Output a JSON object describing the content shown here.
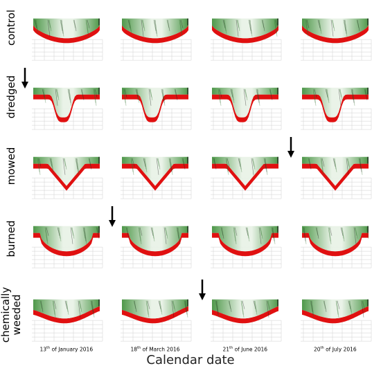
{
  "rows": [
    {
      "label_lines": [
        "control"
      ],
      "arrow_before_col": null
    },
    {
      "label_lines": [
        "dredged"
      ],
      "arrow_before_col": 0
    },
    {
      "label_lines": [
        "mowed"
      ],
      "arrow_before_col": 3
    },
    {
      "label_lines": [
        "burned"
      ],
      "arrow_before_col": 1
    },
    {
      "label_lines": [
        "chemically",
        "weeded"
      ],
      "arrow_before_col": 2
    }
  ],
  "dates": [
    {
      "day": "13",
      "suffix": "th",
      "rest": "of January 2016"
    },
    {
      "day": "18",
      "suffix": "th",
      "rest": "of March 2016"
    },
    {
      "day": "21",
      "suffix": "th",
      "rest": "of June 2016"
    },
    {
      "day": "20",
      "suffix": "th",
      "rest": "of July 2016"
    }
  ],
  "x_axis_label": "Calendar date",
  "colors": {
    "vegetation": "#3f8f3a",
    "vegetation_light": "#e8f2e6",
    "soil": "#e01010",
    "shadow": "#1a1a1a",
    "grid": "#cfcfcf",
    "arrow": "#000000"
  },
  "icons": {
    "treatment_marker": "down-arrow-icon"
  }
}
